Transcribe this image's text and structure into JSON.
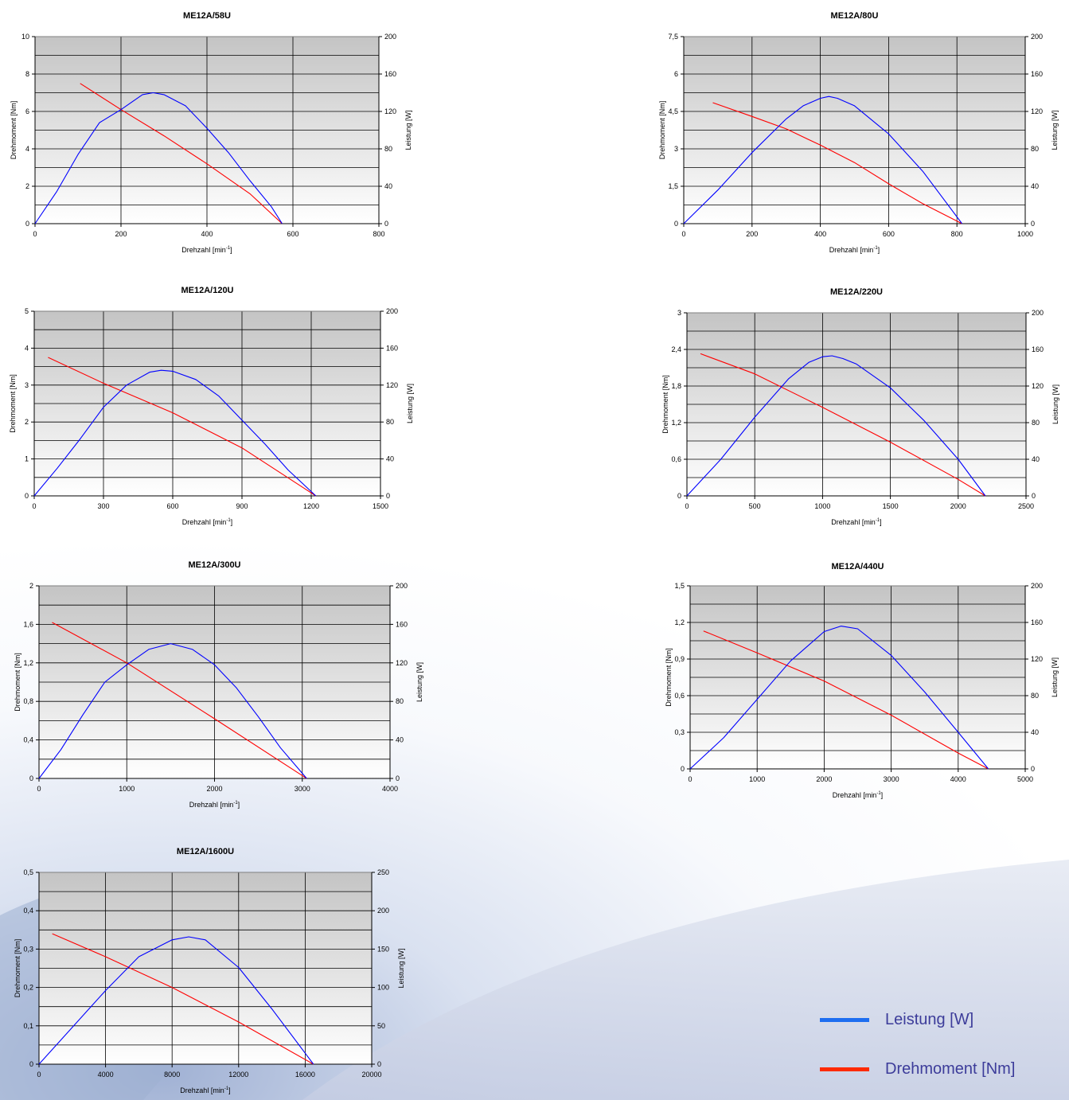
{
  "legend": {
    "power_label": "Leistung [W]",
    "torque_label": "Drehmoment [Nm]"
  },
  "colors": {
    "power": "#0000ff",
    "torque": "#ff0000",
    "legend_power": "#1e6ef0",
    "legend_torque": "#ff2a00",
    "plot_top": "#c4c4c4",
    "plot_bottom": "#ffffff"
  },
  "axes_labels": {
    "xlabel": "Drehzahl [min",
    "xlabel_sup": "-1",
    "xlabel_end": "]",
    "ylabel_left": "Drehmoment [Nm]",
    "ylabel_right": "Leistung [W]"
  },
  "chart_data": [
    {
      "type": "line",
      "title": "ME12A/58U",
      "xlim": [
        0,
        800
      ],
      "xticks": [
        0,
        200,
        400,
        600,
        800
      ],
      "xtick_labels": [
        "0",
        "200",
        "400",
        "600",
        "800"
      ],
      "ylim_left": [
        0,
        10
      ],
      "yticks_left": [
        0,
        2,
        4,
        6,
        8,
        10
      ],
      "ytick_labels_left": [
        "0",
        "2",
        "4",
        "6",
        "8",
        "10"
      ],
      "ylim_right": [
        0,
        200
      ],
      "yticks_right": [
        0,
        40,
        80,
        120,
        160,
        200
      ],
      "ytick_labels_right": [
        "0",
        "40",
        "80",
        "120",
        "160",
        "200"
      ],
      "grid": true,
      "series": [
        {
          "name": "Drehmoment [Nm]",
          "axis": "left",
          "x": [
            105,
            200,
            300,
            400,
            500,
            575
          ],
          "y": [
            7.5,
            6.1,
            4.7,
            3.2,
            1.6,
            0
          ]
        },
        {
          "name": "Leistung [W]",
          "axis": "right",
          "x": [
            0,
            50,
            100,
            150,
            200,
            250,
            275,
            300,
            350,
            400,
            450,
            500,
            550,
            575
          ],
          "y": [
            0,
            34,
            74,
            108,
            122,
            138,
            140,
            138,
            126,
            102,
            76,
            46,
            18,
            0
          ]
        }
      ]
    },
    {
      "type": "line",
      "title": "ME12A/80U",
      "xlim": [
        0,
        1000
      ],
      "xticks": [
        0,
        200,
        400,
        600,
        800,
        1000
      ],
      "xtick_labels": [
        "0",
        "200",
        "400",
        "600",
        "800",
        "1000"
      ],
      "ylim_left": [
        0,
        7.5
      ],
      "yticks_left": [
        0,
        1.5,
        3,
        4.5,
        6,
        7.5
      ],
      "ytick_labels_left": [
        "0",
        "1,5",
        "3",
        "4,5",
        "6",
        "7,5"
      ],
      "ylim_right": [
        0,
        200
      ],
      "yticks_right": [
        0,
        40,
        80,
        120,
        160,
        200
      ],
      "ytick_labels_right": [
        "0",
        "40",
        "80",
        "120",
        "160",
        "200"
      ],
      "grid": true,
      "series": [
        {
          "name": "Drehmoment [Nm]",
          "axis": "left",
          "x": [
            85,
            200,
            300,
            400,
            500,
            600,
            700,
            815
          ],
          "y": [
            4.85,
            4.3,
            3.8,
            3.15,
            2.45,
            1.6,
            0.8,
            0
          ]
        },
        {
          "name": "Leistung [W]",
          "axis": "right",
          "x": [
            0,
            100,
            200,
            300,
            350,
            400,
            425,
            450,
            500,
            600,
            700,
            815
          ],
          "y": [
            0,
            36,
            76,
            112,
            126,
            134,
            136,
            134,
            126,
            96,
            56,
            0
          ]
        }
      ]
    },
    {
      "type": "line",
      "title": "ME12A/120U",
      "xlim": [
        0,
        1500
      ],
      "xticks": [
        0,
        300,
        600,
        900,
        1200,
        1500
      ],
      "xtick_labels": [
        "0",
        "300",
        "600",
        "900",
        "1200",
        "1500"
      ],
      "ylim_left": [
        0,
        5
      ],
      "yticks_left": [
        0,
        1,
        2,
        3,
        4,
        5
      ],
      "ytick_labels_left": [
        "0",
        "1",
        "2",
        "3",
        "4",
        "5"
      ],
      "ylim_right": [
        0,
        200
      ],
      "yticks_right": [
        0,
        40,
        80,
        120,
        160,
        200
      ],
      "ytick_labels_right": [
        "0",
        "40",
        "80",
        "120",
        "160",
        "200"
      ],
      "grid": true,
      "series": [
        {
          "name": "Drehmoment [Nm]",
          "axis": "left",
          "x": [
            60,
            300,
            600,
            900,
            1220
          ],
          "y": [
            3.75,
            3.05,
            2.25,
            1.3,
            0
          ]
        },
        {
          "name": "Leistung [W]",
          "axis": "right",
          "x": [
            0,
            100,
            200,
            300,
            400,
            500,
            550,
            600,
            700,
            800,
            900,
            1000,
            1100,
            1220
          ],
          "y": [
            0,
            30,
            62,
            96,
            120,
            134,
            136,
            135,
            126,
            108,
            82,
            56,
            28,
            0
          ]
        }
      ]
    },
    {
      "type": "line",
      "title": "ME12A/220U",
      "xlim": [
        0,
        2500
      ],
      "xticks": [
        0,
        500,
        1000,
        1500,
        2000,
        2500
      ],
      "xtick_labels": [
        "0",
        "500",
        "1000",
        "1500",
        "2000",
        "2500"
      ],
      "ylim_left": [
        0,
        3
      ],
      "yticks_left": [
        0,
        0.6,
        1.2,
        1.8,
        2.4,
        3
      ],
      "ytick_labels_left": [
        "0",
        "0,6",
        "1,2",
        "1,8",
        "2,4",
        "3"
      ],
      "ylim_right": [
        0,
        200
      ],
      "yticks_right": [
        0,
        40,
        80,
        120,
        160,
        200
      ],
      "ytick_labels_right": [
        "0",
        "40",
        "80",
        "120",
        "160",
        "200"
      ],
      "grid": true,
      "series": [
        {
          "name": "Drehmoment [Nm]",
          "axis": "left",
          "x": [
            100,
            500,
            1000,
            1500,
            2000,
            2200
          ],
          "y": [
            2.33,
            2.0,
            1.45,
            0.88,
            0.27,
            0
          ]
        },
        {
          "name": "Leistung [W]",
          "axis": "right",
          "x": [
            0,
            250,
            500,
            750,
            900,
            1000,
            1070,
            1150,
            1250,
            1500,
            1750,
            2000,
            2200
          ],
          "y": [
            0,
            40,
            86,
            128,
            146,
            152,
            153,
            150,
            144,
            118,
            82,
            40,
            0
          ]
        }
      ]
    },
    {
      "type": "line",
      "title": "ME12A/300U",
      "xlim": [
        0,
        4000
      ],
      "xticks": [
        0,
        1000,
        2000,
        3000,
        4000
      ],
      "xtick_labels": [
        "0",
        "1000",
        "2000",
        "3000",
        "4000"
      ],
      "ylim_left": [
        0,
        2
      ],
      "yticks_left": [
        0,
        0.4,
        0.8,
        1.2,
        1.6,
        2
      ],
      "ytick_labels_left": [
        "0",
        "0,4",
        "0,8",
        "1,2",
        "1,6",
        "2"
      ],
      "ylim_right": [
        0,
        200
      ],
      "yticks_right": [
        0,
        40,
        80,
        120,
        160,
        200
      ],
      "ytick_labels_right": [
        "0",
        "40",
        "80",
        "120",
        "160",
        "200"
      ],
      "grid": true,
      "series": [
        {
          "name": "Drehmoment [Nm]",
          "axis": "left",
          "x": [
            150,
            1000,
            2000,
            3050
          ],
          "y": [
            1.62,
            1.2,
            0.62,
            0
          ]
        },
        {
          "name": "Leistung [W]",
          "axis": "right",
          "x": [
            0,
            250,
            500,
            750,
            1000,
            1250,
            1500,
            1750,
            2000,
            2250,
            2500,
            2750,
            3050
          ],
          "y": [
            0,
            30,
            66,
            100,
            118,
            134,
            140,
            134,
            118,
            94,
            64,
            32,
            0
          ]
        }
      ]
    },
    {
      "type": "line",
      "title": "ME12A/440U",
      "xlim": [
        0,
        5000
      ],
      "xticks": [
        0,
        1000,
        2000,
        3000,
        4000,
        5000
      ],
      "xtick_labels": [
        "0",
        "1000",
        "2000",
        "3000",
        "4000",
        "5000"
      ],
      "ylim_left": [
        0,
        1.5
      ],
      "yticks_left": [
        0,
        0.3,
        0.6,
        0.9,
        1.2,
        1.5
      ],
      "ytick_labels_left": [
        "0",
        "0,3",
        "0,6",
        "0,9",
        "1,2",
        "1,5"
      ],
      "ylim_right": [
        0,
        200
      ],
      "yticks_right": [
        0,
        40,
        80,
        120,
        160,
        200
      ],
      "ytick_labels_right": [
        "0",
        "40",
        "80",
        "120",
        "160",
        "200"
      ],
      "grid": true,
      "series": [
        {
          "name": "Drehmoment [Nm]",
          "axis": "left",
          "x": [
            200,
            1000,
            2000,
            3000,
            4000,
            4450
          ],
          "y": [
            1.13,
            0.95,
            0.72,
            0.44,
            0.13,
            0
          ]
        },
        {
          "name": "Leistung [W]",
          "axis": "right",
          "x": [
            0,
            500,
            1000,
            1500,
            2000,
            2250,
            2500,
            3000,
            3500,
            4000,
            4450
          ],
          "y": [
            0,
            34,
            76,
            118,
            150,
            156,
            153,
            124,
            84,
            40,
            0
          ]
        }
      ]
    },
    {
      "type": "line",
      "title": "ME12A/1600U",
      "xlim": [
        0,
        20000
      ],
      "xticks": [
        0,
        4000,
        8000,
        12000,
        16000,
        20000
      ],
      "xtick_labels": [
        "0",
        "4000",
        "8000",
        "12000",
        "16000",
        "20000"
      ],
      "ylim_left": [
        0,
        0.5
      ],
      "yticks_left": [
        0,
        0.1,
        0.2,
        0.3,
        0.4,
        0.5
      ],
      "ytick_labels_left": [
        "0",
        "0,1",
        "0,2",
        "0,3",
        "0,4",
        "0,5"
      ],
      "ylim_right": [
        0,
        250
      ],
      "yticks_right": [
        0,
        50,
        100,
        150,
        200,
        250
      ],
      "ytick_labels_right": [
        "0",
        "50",
        "100",
        "150",
        "200",
        "250"
      ],
      "grid": true,
      "series": [
        {
          "name": "Drehmoment [Nm]",
          "axis": "left",
          "x": [
            800,
            4000,
            8000,
            12000,
            16500
          ],
          "y": [
            0.34,
            0.28,
            0.2,
            0.11,
            0
          ]
        },
        {
          "name": "Leistung [W]",
          "axis": "right",
          "x": [
            0,
            2000,
            4000,
            6000,
            8000,
            9000,
            10000,
            12000,
            14000,
            16500
          ],
          "y": [
            0,
            48,
            96,
            140,
            162,
            166,
            162,
            126,
            72,
            0
          ]
        }
      ]
    }
  ]
}
